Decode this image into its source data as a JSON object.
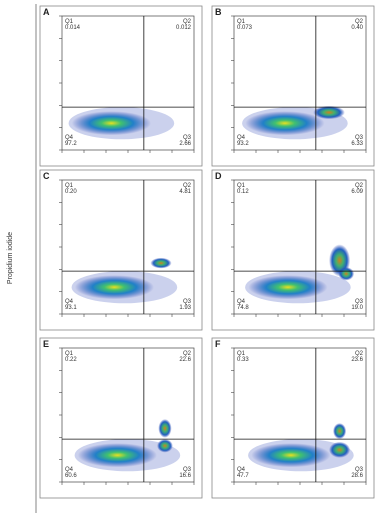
{
  "y_label": "Propidium iodide",
  "panels": [
    {
      "letter": "A",
      "quadrants": [
        {
          "name": "Q1",
          "value": "0.014"
        },
        {
          "name": "Q2",
          "value": "0.012"
        },
        {
          "name": "Q4",
          "value": "97.2"
        },
        {
          "name": "Q3",
          "value": "2.66"
        }
      ]
    },
    {
      "letter": "B",
      "quadrants": [
        {
          "name": "Q1",
          "value": "0.073"
        },
        {
          "name": "Q2",
          "value": "0.40"
        },
        {
          "name": "Q4",
          "value": "93.2"
        },
        {
          "name": "Q3",
          "value": "6.33"
        }
      ]
    },
    {
      "letter": "C",
      "quadrants": [
        {
          "name": "Q1",
          "value": "0.20"
        },
        {
          "name": "Q2",
          "value": "4.81"
        },
        {
          "name": "Q4",
          "value": "93.1"
        },
        {
          "name": "Q3",
          "value": "1.93"
        }
      ]
    },
    {
      "letter": "D",
      "quadrants": [
        {
          "name": "Q1",
          "value": "0.12"
        },
        {
          "name": "Q2",
          "value": "6.09"
        },
        {
          "name": "Q4",
          "value": "74.8"
        },
        {
          "name": "Q3",
          "value": "19.0"
        }
      ]
    },
    {
      "letter": "E",
      "quadrants": [
        {
          "name": "Q1",
          "value": "0.22"
        },
        {
          "name": "Q2",
          "value": "22.6"
        },
        {
          "name": "Q4",
          "value": "60.6"
        },
        {
          "name": "Q3",
          "value": "16.6"
        }
      ]
    },
    {
      "letter": "F",
      "quadrants": [
        {
          "name": "Q1",
          "value": "0.33"
        },
        {
          "name": "Q2",
          "value": "23.6"
        },
        {
          "name": "Q4",
          "value": "47.7"
        },
        {
          "name": "Q3",
          "value": "28.6"
        }
      ]
    }
  ]
}
